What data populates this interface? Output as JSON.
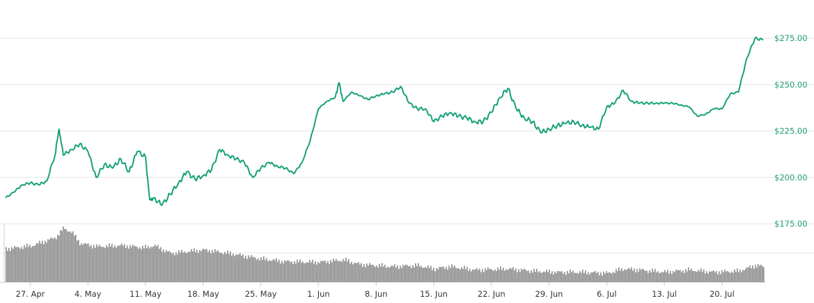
{
  "chart_data": {
    "type": "line",
    "title": "",
    "xlabel": "",
    "ylabel": "",
    "grid": true,
    "legend": "none",
    "colors": {
      "price_line": "#16a07a",
      "y_tick_text": "#1f9e78",
      "x_tick_text": "#333333",
      "volume": "#8a8a8a",
      "grid": "#e6e6e6"
    },
    "x_ticks": [
      "27. Apr",
      "4. May",
      "11. May",
      "18. May",
      "25. May",
      "1. Jun",
      "8. Jun",
      "15. Jun",
      "22. Jun",
      "29. Jun",
      "6. Jul",
      "13. Jul",
      "20. Jul"
    ],
    "x_range": [
      "2020-04-24",
      "2020-07-25"
    ],
    "y_ticks": [
      "$175.00",
      "$200.00",
      "$225.00",
      "$250.00",
      "$275.00"
    ],
    "y_tick_values": [
      175,
      200,
      225,
      250,
      275
    ],
    "ylim": [
      175,
      280
    ],
    "series": [
      {
        "kind": "price",
        "points": [
          [
            "2020-04-24",
            189
          ],
          [
            "2020-04-25",
            192
          ],
          [
            "2020-04-26",
            196
          ],
          [
            "2020-04-27",
            197
          ],
          [
            "2020-04-28",
            196
          ],
          [
            "2020-04-29",
            198
          ],
          [
            "2020-04-30",
            212
          ],
          [
            "2020-04-30T12",
            226
          ],
          [
            "2020-05-01",
            212
          ],
          [
            "2020-05-02",
            215
          ],
          [
            "2020-05-03",
            218
          ],
          [
            "2020-05-04",
            214
          ],
          [
            "2020-05-05",
            200
          ],
          [
            "2020-05-06",
            207
          ],
          [
            "2020-05-07",
            205
          ],
          [
            "2020-05-08",
            210
          ],
          [
            "2020-05-09",
            203
          ],
          [
            "2020-05-10",
            214
          ],
          [
            "2020-05-11",
            211
          ],
          [
            "2020-05-11T12",
            188
          ],
          [
            "2020-05-12",
            189
          ],
          [
            "2020-05-13",
            185
          ],
          [
            "2020-05-14",
            191
          ],
          [
            "2020-05-15",
            197
          ],
          [
            "2020-05-16",
            203
          ],
          [
            "2020-05-17",
            199
          ],
          [
            "2020-05-18",
            201
          ],
          [
            "2020-05-19",
            204
          ],
          [
            "2020-05-20",
            215
          ],
          [
            "2020-05-21",
            212
          ],
          [
            "2020-05-22",
            210
          ],
          [
            "2020-05-23",
            208
          ],
          [
            "2020-05-24",
            200
          ],
          [
            "2020-05-25",
            205
          ],
          [
            "2020-05-26",
            208
          ],
          [
            "2020-05-27",
            206
          ],
          [
            "2020-05-28",
            205
          ],
          [
            "2020-05-29",
            202
          ],
          [
            "2020-05-30",
            208
          ],
          [
            "2020-05-31",
            220
          ],
          [
            "2020-06-01",
            237
          ],
          [
            "2020-06-02",
            241
          ],
          [
            "2020-06-03",
            243
          ],
          [
            "2020-06-03T12",
            251
          ],
          [
            "2020-06-04",
            241
          ],
          [
            "2020-06-05",
            246
          ],
          [
            "2020-06-06",
            244
          ],
          [
            "2020-06-07",
            242
          ],
          [
            "2020-06-08",
            244
          ],
          [
            "2020-06-09",
            245
          ],
          [
            "2020-06-10",
            246
          ],
          [
            "2020-06-11",
            249
          ],
          [
            "2020-06-12",
            240
          ],
          [
            "2020-06-13",
            237
          ],
          [
            "2020-06-14",
            237
          ],
          [
            "2020-06-15",
            230
          ],
          [
            "2020-06-16",
            233
          ],
          [
            "2020-06-17",
            235
          ],
          [
            "2020-06-18",
            233
          ],
          [
            "2020-06-19",
            232
          ],
          [
            "2020-06-20",
            230
          ],
          [
            "2020-06-21",
            230
          ],
          [
            "2020-06-22",
            235
          ],
          [
            "2020-06-23",
            243
          ],
          [
            "2020-06-24",
            248
          ],
          [
            "2020-06-25",
            237
          ],
          [
            "2020-06-26",
            232
          ],
          [
            "2020-06-27",
            230
          ],
          [
            "2020-06-28",
            224
          ],
          [
            "2020-06-29",
            226
          ],
          [
            "2020-06-30",
            228
          ],
          [
            "2020-07-01",
            229
          ],
          [
            "2020-07-02",
            230
          ],
          [
            "2020-07-03",
            228
          ],
          [
            "2020-07-04",
            227
          ],
          [
            "2020-07-05",
            226
          ],
          [
            "2020-07-06",
            238
          ],
          [
            "2020-07-07",
            240
          ],
          [
            "2020-07-08",
            247
          ],
          [
            "2020-07-09",
            241
          ],
          [
            "2020-07-10",
            240
          ],
          [
            "2020-07-11",
            240
          ],
          [
            "2020-07-12",
            240
          ],
          [
            "2020-07-13",
            240
          ],
          [
            "2020-07-14",
            240
          ],
          [
            "2020-07-15",
            239
          ],
          [
            "2020-07-16",
            238
          ],
          [
            "2020-07-17",
            233
          ],
          [
            "2020-07-18",
            234
          ],
          [
            "2020-07-19",
            237
          ],
          [
            "2020-07-20",
            237
          ],
          [
            "2020-07-21",
            245
          ],
          [
            "2020-07-22",
            246
          ],
          [
            "2020-07-23",
            264
          ],
          [
            "2020-07-24",
            275
          ],
          [
            "2020-07-25",
            274
          ]
        ]
      },
      {
        "kind": "volume",
        "note_units": "relative",
        "points": [
          [
            "2020-04-24",
            0.6
          ],
          [
            "2020-04-27",
            0.65
          ],
          [
            "2020-04-30",
            0.8
          ],
          [
            "2020-05-01",
            0.97
          ],
          [
            "2020-05-02",
            0.9
          ],
          [
            "2020-05-03",
            0.7
          ],
          [
            "2020-05-05",
            0.64
          ],
          [
            "2020-05-08",
            0.66
          ],
          [
            "2020-05-11",
            0.62
          ],
          [
            "2020-05-12",
            0.66
          ],
          [
            "2020-05-14",
            0.52
          ],
          [
            "2020-05-18",
            0.58
          ],
          [
            "2020-05-21",
            0.52
          ],
          [
            "2020-05-25",
            0.42
          ],
          [
            "2020-05-28",
            0.37
          ],
          [
            "2020-06-01",
            0.36
          ],
          [
            "2020-06-04",
            0.4
          ],
          [
            "2020-06-06",
            0.32
          ],
          [
            "2020-06-10",
            0.28
          ],
          [
            "2020-06-13",
            0.3
          ],
          [
            "2020-06-15",
            0.24
          ],
          [
            "2020-06-17",
            0.28
          ],
          [
            "2020-06-20",
            0.22
          ],
          [
            "2020-06-24",
            0.24
          ],
          [
            "2020-06-27",
            0.2
          ],
          [
            "2020-06-30",
            0.18
          ],
          [
            "2020-07-03",
            0.18
          ],
          [
            "2020-07-06",
            0.16
          ],
          [
            "2020-07-08",
            0.24
          ],
          [
            "2020-07-10",
            0.22
          ],
          [
            "2020-07-13",
            0.18
          ],
          [
            "2020-07-16",
            0.22
          ],
          [
            "2020-07-19",
            0.18
          ],
          [
            "2020-07-22",
            0.2
          ],
          [
            "2020-07-24",
            0.3
          ],
          [
            "2020-07-25",
            0.28
          ]
        ]
      }
    ]
  }
}
